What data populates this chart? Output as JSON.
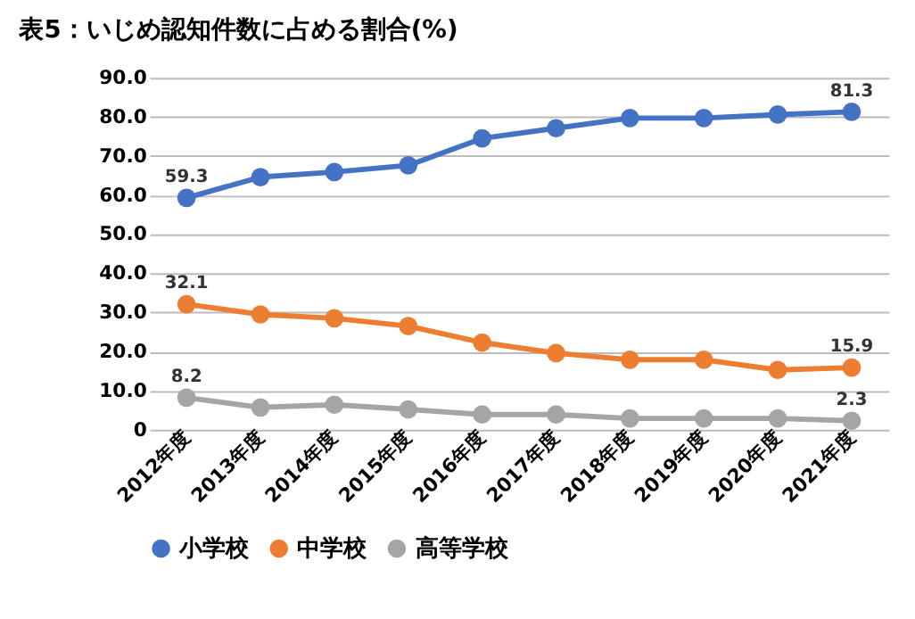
{
  "chart_data": {
    "type": "line",
    "title": "表5：いじめ認知件数に占める割合(%)",
    "categories": [
      "2012年度",
      "2013年度",
      "2014年度",
      "2015年度",
      "2016年度",
      "2017年度",
      "2018年度",
      "2019年度",
      "2020年度",
      "2021年度"
    ],
    "series": [
      {
        "name": "小学校",
        "color": "#4472c4",
        "values": [
          59.3,
          64.6,
          65.9,
          67.6,
          74.5,
          77.1,
          79.7,
          79.7,
          80.6,
          81.3
        ],
        "value_labels": [
          "59.3",
          null,
          null,
          null,
          null,
          null,
          null,
          null,
          null,
          "81.3"
        ]
      },
      {
        "name": "中学校",
        "color": "#ed7d31",
        "values": [
          32.1,
          29.5,
          28.5,
          26.5,
          22.3,
          19.6,
          17.9,
          17.9,
          15.3,
          15.9
        ],
        "value_labels": [
          "32.1",
          null,
          null,
          null,
          null,
          null,
          null,
          null,
          null,
          "15.9"
        ]
      },
      {
        "name": "高等学校",
        "color": "#a5a5a5",
        "values": [
          8.2,
          5.7,
          6.4,
          5.2,
          3.9,
          3.9,
          2.9,
          2.9,
          2.9,
          2.3
        ],
        "value_labels": [
          "8.2",
          null,
          null,
          null,
          null,
          null,
          null,
          null,
          null,
          "2.3"
        ]
      }
    ],
    "ylim": [
      0,
      90
    ],
    "yticks": [
      0,
      {
        "value": 10,
        "label": "10.0"
      },
      {
        "value": 20,
        "label": "20.0"
      },
      {
        "value": 30,
        "label": "30.0"
      },
      {
        "value": 40,
        "label": "40.0"
      },
      {
        "value": 50,
        "label": "50.0"
      },
      {
        "value": 60,
        "label": "60.0"
      },
      {
        "value": 70,
        "label": "70.0"
      },
      {
        "value": 80,
        "label": "80.0"
      },
      {
        "value": 90,
        "label": "90.0"
      }
    ],
    "grid": "y",
    "legend": "bottom",
    "marker": "circle",
    "line_style": "solid"
  }
}
